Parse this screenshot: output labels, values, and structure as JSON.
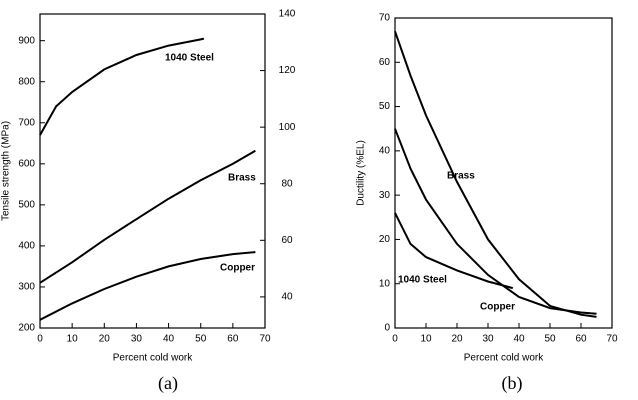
{
  "chart_data": [
    {
      "type": "line",
      "caption": "(a)",
      "x_label": "Percent cold work",
      "y_label": "Tensile strength (MPa)",
      "xlim": [
        0,
        70
      ],
      "xticks": [
        0,
        10,
        20,
        30,
        40,
        50,
        60,
        70
      ],
      "ylim": [
        200,
        965
      ],
      "yticks": [
        200,
        300,
        400,
        500,
        600,
        700,
        800,
        900
      ],
      "y2lim": [
        29,
        140
      ],
      "y2ticks": [
        40,
        60,
        80,
        100,
        120,
        140
      ],
      "series": [
        {
          "name": "1040 Steel",
          "color": "#000000",
          "x": [
            0,
            5,
            10,
            20,
            30,
            40,
            50,
            51
          ],
          "values": [
            670,
            740,
            775,
            830,
            865,
            888,
            903,
            905
          ]
        },
        {
          "name": "Brass",
          "color": "#000000",
          "x": [
            0,
            10,
            20,
            30,
            40,
            50,
            60,
            67
          ],
          "values": [
            310,
            360,
            415,
            465,
            515,
            560,
            600,
            632
          ]
        },
        {
          "name": "Copper",
          "color": "#000000",
          "x": [
            0,
            10,
            20,
            30,
            40,
            50,
            60,
            67
          ],
          "values": [
            220,
            260,
            295,
            325,
            350,
            368,
            380,
            385
          ]
        }
      ]
    },
    {
      "type": "line",
      "caption": "(b)",
      "x_label": "Percent cold work",
      "y_label": "Ductility (%EL)",
      "xlim": [
        0,
        70
      ],
      "xticks": [
        0,
        10,
        20,
        30,
        40,
        50,
        60,
        70
      ],
      "ylim": [
        0,
        70
      ],
      "yticks": [
        0,
        10,
        20,
        30,
        40,
        50,
        60,
        70
      ],
      "series": [
        {
          "name": "Brass",
          "color": "#000000",
          "x": [
            0,
            5,
            10,
            20,
            30,
            40,
            50,
            60,
            65
          ],
          "values": [
            67,
            57,
            48,
            33,
            20,
            11,
            5,
            3,
            2.5
          ]
        },
        {
          "name": "Copper",
          "color": "#000000",
          "x": [
            0,
            5,
            10,
            20,
            30,
            40,
            50,
            60,
            65
          ],
          "values": [
            45,
            36,
            29,
            19,
            12,
            7,
            4.5,
            3.5,
            3.2
          ]
        },
        {
          "name": "1040 Steel",
          "color": "#000000",
          "x": [
            0,
            5,
            10,
            20,
            30,
            38
          ],
          "values": [
            26,
            19,
            16,
            13,
            10.5,
            9
          ]
        }
      ]
    }
  ]
}
